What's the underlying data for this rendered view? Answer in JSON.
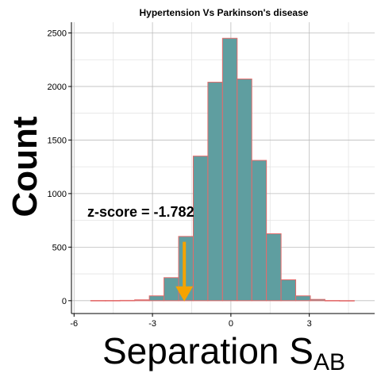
{
  "chart_data": {
    "type": "bar",
    "title": "Hypertension Vs Parkinson's disease",
    "xlabel": "Separation S",
    "xlabel_subscript": "AB",
    "ylabel": "Count",
    "xlim": [
      -6.1,
      5.5
    ],
    "ylim": [
      -120,
      2600
    ],
    "x_ticks": [
      -6,
      -3,
      0,
      3
    ],
    "x_tick_labels": [
      "-6",
      "-3",
      "0",
      "3"
    ],
    "y_ticks": [
      0,
      500,
      1000,
      1500,
      2000,
      2500
    ],
    "y_tick_labels": [
      "0",
      "500",
      "1000",
      "1500",
      "2000",
      "2500"
    ],
    "grid": true,
    "bin_width": 0.56,
    "bins": [
      {
        "x0": -5.36,
        "x1": -4.8,
        "count": 2
      },
      {
        "x0": -4.8,
        "x1": -4.24,
        "count": 2
      },
      {
        "x0": -4.24,
        "x1": -3.68,
        "count": 3
      },
      {
        "x0": -3.68,
        "x1": -3.12,
        "count": 8
      },
      {
        "x0": -3.12,
        "x1": -2.56,
        "count": 45
      },
      {
        "x0": -2.56,
        "x1": -2.0,
        "count": 215
      },
      {
        "x0": -2.0,
        "x1": -1.44,
        "count": 600
      },
      {
        "x0": -1.44,
        "x1": -0.88,
        "count": 1350
      },
      {
        "x0": -0.88,
        "x1": -0.32,
        "count": 2040
      },
      {
        "x0": -0.32,
        "x1": 0.24,
        "count": 2450
      },
      {
        "x0": 0.24,
        "x1": 0.8,
        "count": 2070
      },
      {
        "x0": 0.8,
        "x1": 1.36,
        "count": 1310
      },
      {
        "x0": 1.36,
        "x1": 1.92,
        "count": 625
      },
      {
        "x0": 1.92,
        "x1": 2.48,
        "count": 195
      },
      {
        "x0": 2.48,
        "x1": 3.04,
        "count": 45
      },
      {
        "x0": 3.04,
        "x1": 3.6,
        "count": 12
      },
      {
        "x0": 3.6,
        "x1": 4.16,
        "count": 2
      },
      {
        "x0": 4.16,
        "x1": 4.72,
        "count": 1
      }
    ],
    "annotation": {
      "text": "z-score = -1.782",
      "x": -1.782,
      "arrow_from_count": 550,
      "arrow_to_count": 0
    },
    "colors": {
      "bar_fill": "#5f9ea0",
      "bar_edge": "#e36b6b",
      "arrow": "#f5a300",
      "grid_major": "#bdbdbd",
      "grid_minor": "#e3e3e3",
      "axis": "#000000"
    }
  }
}
